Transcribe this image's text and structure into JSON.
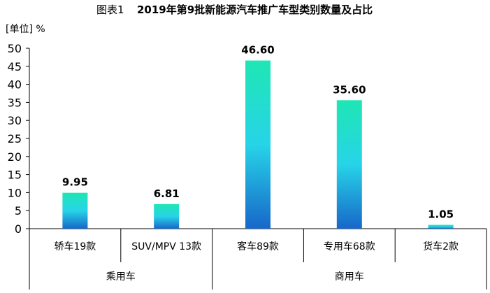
{
  "chart_data": {
    "type": "bar",
    "title_prefix": "图表1",
    "title": "2019年第9批新能源汽车推广车型类别数量及占比",
    "unit": "[单位] %",
    "ylim": [
      0,
      50
    ],
    "yticks": [
      0,
      5,
      10,
      15,
      20,
      25,
      30,
      35,
      40,
      45,
      50
    ],
    "categories": [
      "轿车19款",
      "SUV/MPV 13款",
      "客车89款",
      "专用车68款",
      "货车2款"
    ],
    "values": [
      9.95,
      6.81,
      46.6,
      35.6,
      1.05
    ],
    "value_labels": [
      "9.95",
      "6.81",
      "46.60",
      "35.60",
      "1.05"
    ],
    "groups": [
      {
        "label": "乘用车",
        "count": 2
      },
      {
        "label": "商用车",
        "count": 3
      }
    ],
    "colors": {
      "bar_top": "#1fe6b4",
      "bar_mid": "#27d4e8",
      "bar_bottom": "#1767c9",
      "axis": "#000000"
    },
    "grid": false,
    "legend": "none"
  }
}
